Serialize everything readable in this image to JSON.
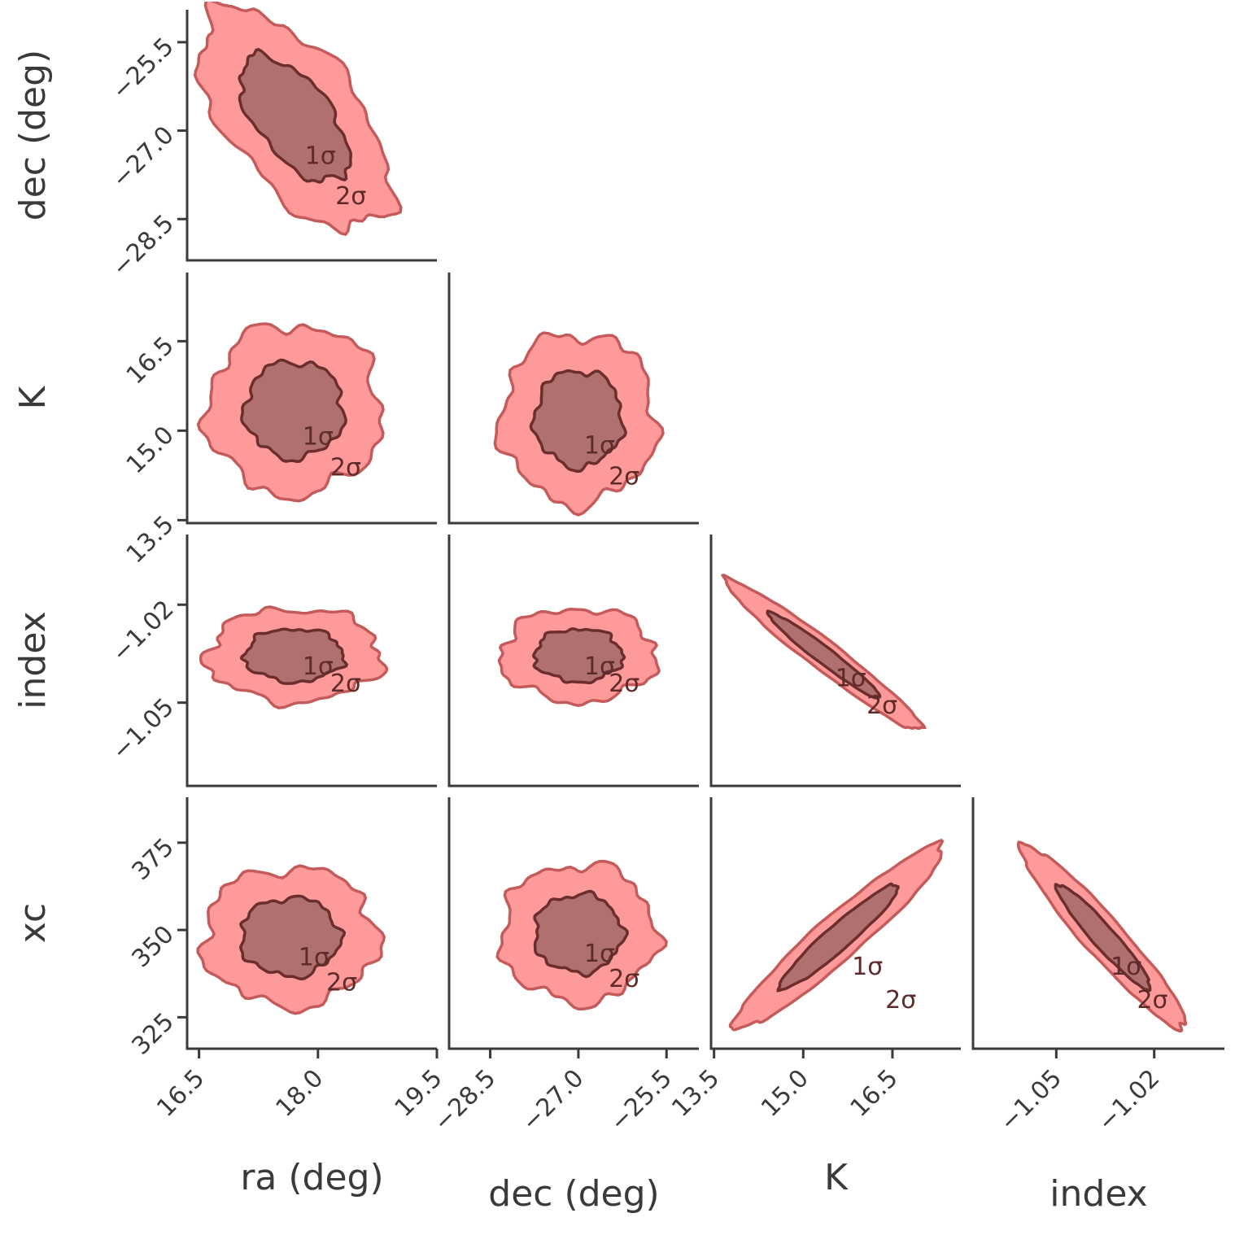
{
  "chart_data": {
    "type": "corner",
    "parameters": [
      "ra (deg)",
      "dec (deg)",
      "K",
      "index",
      "xc"
    ],
    "contour_levels": [
      "1σ",
      "2σ"
    ],
    "colors": {
      "outer_fill": "#ff9a9a",
      "outer_line": "#c55a5a",
      "inner_fill": "#b07070",
      "inner_line": "#6b2e2e",
      "axis": "#3a3a3a"
    },
    "axes": {
      "ra": {
        "label": "ra (deg)",
        "ticks": [
          16.5,
          18.0,
          19.5
        ],
        "tick_labels": [
          "16.5",
          "18.0",
          "19.5"
        ],
        "range": [
          16.35,
          19.5
        ]
      },
      "dec": {
        "label": "dec (deg)",
        "ticks": [
          -28.5,
          -27.0,
          -25.5
        ],
        "tick_labels": [
          "−28.5",
          "−27.0",
          "−25.5"
        ],
        "range": [
          -29.2,
          -24.95
        ]
      },
      "K": {
        "label": "K",
        "ticks": [
          13.5,
          15.0,
          16.5
        ],
        "tick_labels": [
          "13.5",
          "15.0",
          "16.5"
        ],
        "range": [
          13.45,
          17.65
        ]
      },
      "index": {
        "label": "index",
        "ticks": [
          -1.05,
          -1.02
        ],
        "tick_labels": [
          "−1.05",
          "−1.02"
        ],
        "range": [
          -1.0755,
          -0.9985
        ]
      },
      "xc": {
        "label": "xc",
        "ticks": [
          325,
          350,
          375
        ],
        "tick_labels": [
          "325",
          "350",
          "375"
        ],
        "range": [
          316,
          388
        ]
      }
    },
    "panels": [
      {
        "x": "ra",
        "y": "dec",
        "center": [
          17.7,
          -26.8
        ],
        "sigma": [
          0.55,
          0.85
        ],
        "rho": -0.6
      },
      {
        "x": "ra",
        "y": "K",
        "center": [
          17.7,
          15.35
        ],
        "sigma": [
          0.5,
          0.65
        ],
        "rho": 0.0
      },
      {
        "x": "dec",
        "y": "K",
        "center": [
          -27.0,
          15.2
        ],
        "sigma": [
          0.6,
          0.65
        ],
        "rho": 0.0
      },
      {
        "x": "ra",
        "y": "index",
        "center": [
          17.7,
          -1.0355
        ],
        "sigma": [
          0.5,
          0.0065
        ],
        "rho": 0.0
      },
      {
        "x": "dec",
        "y": "index",
        "center": [
          -27.0,
          -1.0355
        ],
        "sigma": [
          0.6,
          0.0065
        ],
        "rho": 0.0
      },
      {
        "x": "K",
        "y": "index",
        "center": [
          15.35,
          -1.0355
        ],
        "sigma": [
          0.75,
          0.0105
        ],
        "rho": -0.97
      },
      {
        "x": "ra",
        "y": "xc",
        "center": [
          17.65,
          348
        ],
        "sigma": [
          0.5,
          9
        ],
        "rho": 0.0
      },
      {
        "x": "dec",
        "y": "xc",
        "center": [
          -27.0,
          349
        ],
        "sigma": [
          0.6,
          9
        ],
        "rho": 0.0
      },
      {
        "x": "K",
        "y": "xc",
        "center": [
          15.6,
          348
        ],
        "sigma": [
          0.8,
          12
        ],
        "rho": 0.95
      },
      {
        "x": "index",
        "y": "xc",
        "center": [
          -1.0355,
          348
        ],
        "sigma": [
          0.0115,
          12
        ],
        "rho": -0.95
      }
    ],
    "grid": false,
    "legend": "none"
  }
}
